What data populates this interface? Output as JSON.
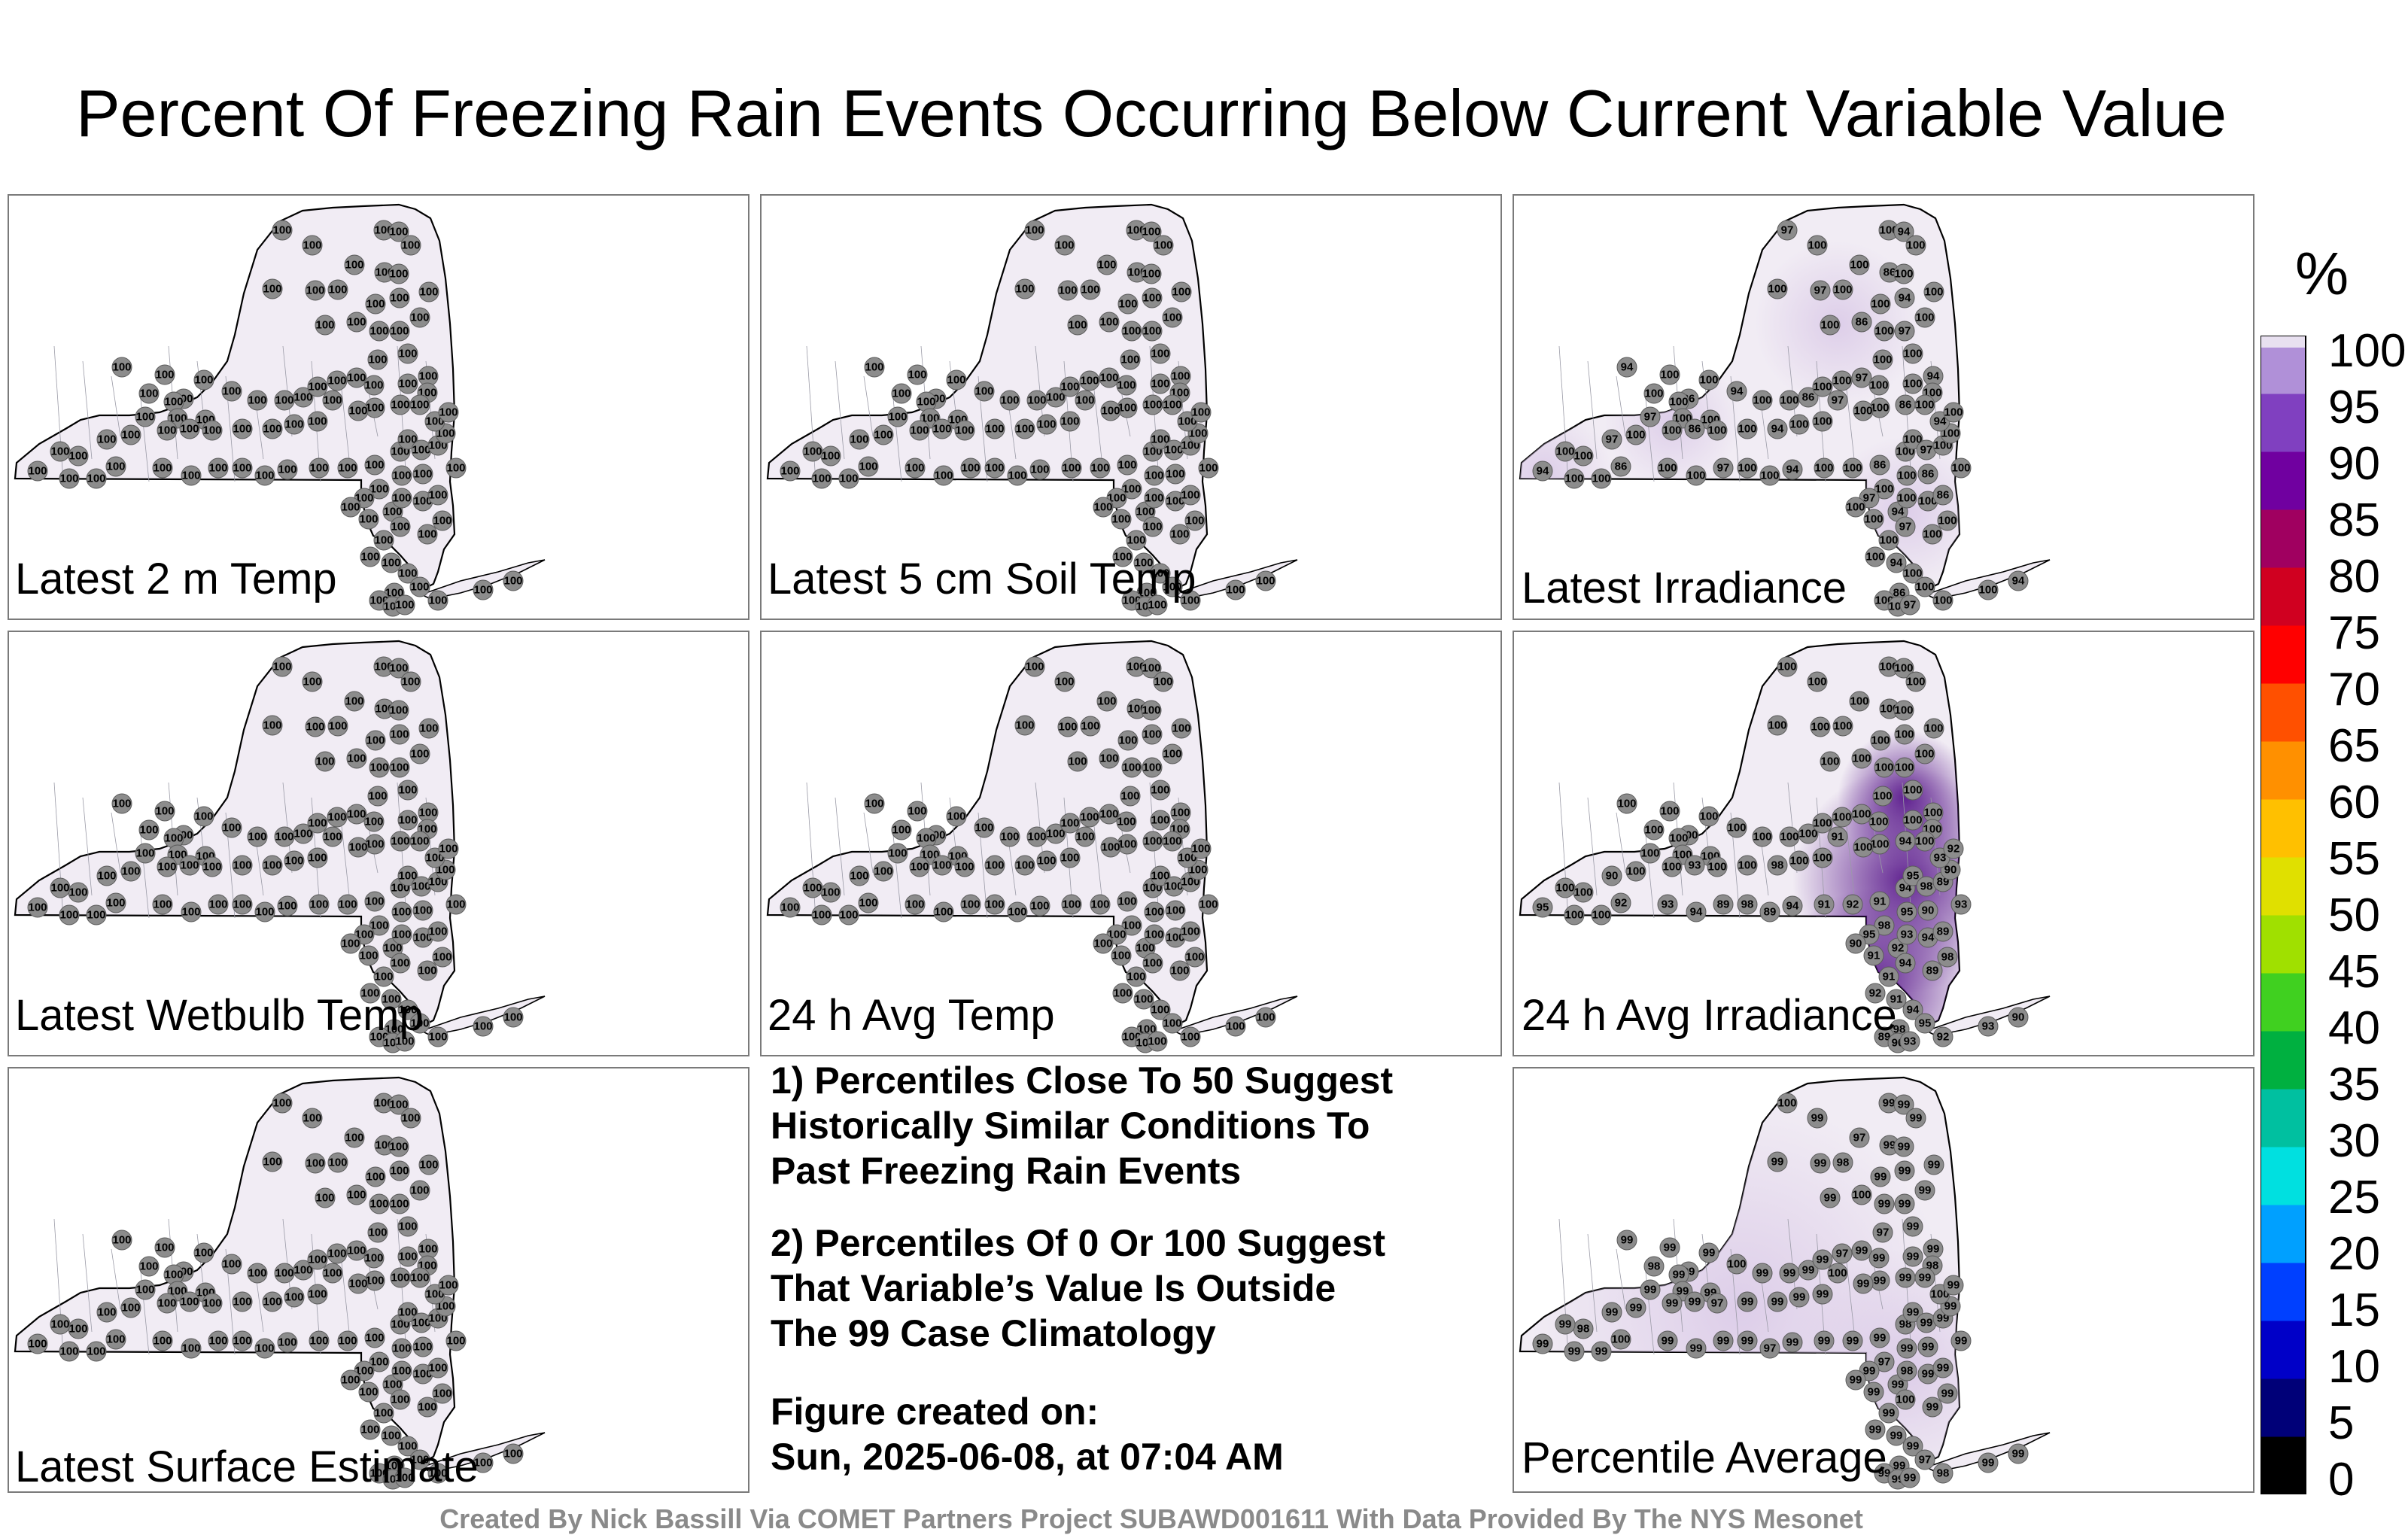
{
  "title": "Percent Of Freezing Rain Events Occurring Below Current Variable Value",
  "panels": [
    {
      "label": "Latest 2 m Temp",
      "value": "100",
      "shading": "none"
    },
    {
      "label": "Latest 5 cm Soil Temp",
      "value": "100",
      "shading": "none"
    },
    {
      "label": "Latest Irradiance",
      "value": "100",
      "shading": "moderate",
      "other_values": [
        "97",
        "98",
        "96",
        "94",
        "92",
        "93",
        "86",
        "89",
        "95"
      ]
    },
    {
      "label": "Latest Wetbulb Temp",
      "value": "100",
      "shading": "none"
    },
    {
      "label": "24 h Avg Temp",
      "value": "100",
      "shading": "none"
    },
    {
      "label": "24 h Avg Irradiance",
      "value": "100",
      "shading": "strong",
      "other_values": [
        "98",
        "95",
        "94",
        "93",
        "92",
        "91",
        "90",
        "89"
      ]
    },
    {
      "label": "Latest Surface Estimate",
      "value": "100",
      "shading": "none"
    },
    {
      "label": "Percentile Average",
      "value": "99",
      "shading": "light",
      "other_values": [
        "100",
        "98",
        "97"
      ]
    }
  ],
  "notes": [
    "1) Percentiles Close To 50 Suggest\nHistorically Similar Conditions To\nPast Freezing Rain Events",
    "2) Percentiles Of 0 Or 100 Suggest\nThat Variable’s Value Is Outside\nThe 99 Case Climatology"
  ],
  "created_label": "Figure created on:",
  "created_date": "Sun, 2025-06-08, at 07:04 AM",
  "colorbar": {
    "unit": "%",
    "ticks": [
      "100",
      "95",
      "90",
      "85",
      "80",
      "75",
      "70",
      "65",
      "60",
      "55",
      "50",
      "45",
      "40",
      "35",
      "30",
      "25",
      "20",
      "15",
      "10",
      "5",
      "0"
    ]
  },
  "credit": "Created By Nick Bassill Via COMET Partners Project SUBAWD001611 With Data Provided By The NYS Mesonet",
  "colors": {
    "land_fill": "#f1ecf4",
    "station_fill": "#8c8c8c",
    "purple_light": "#d8c6e6",
    "purple_dark": "#5a1a8c"
  }
}
